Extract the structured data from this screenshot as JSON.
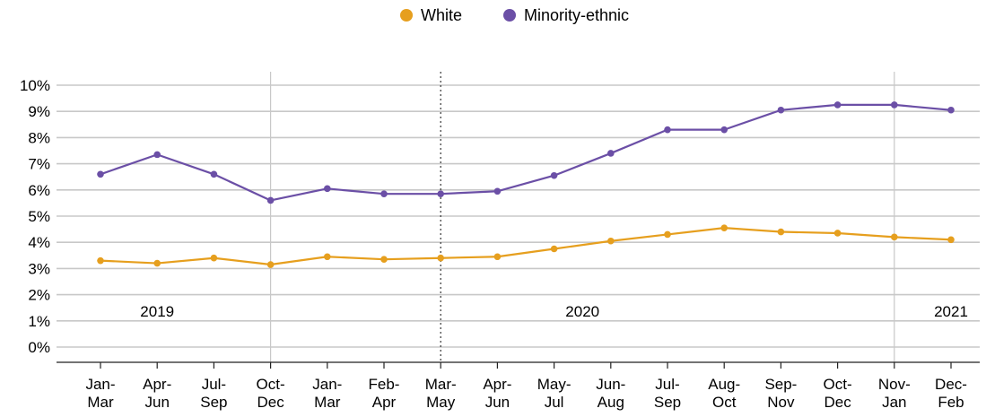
{
  "chart_data": {
    "type": "line",
    "title": "",
    "xlabel": "",
    "ylabel": "",
    "ylim": [
      0,
      10
    ],
    "yticks": [
      "0%",
      "1%",
      "2%",
      "3%",
      "4%",
      "5%",
      "6%",
      "7%",
      "8%",
      "9%",
      "10%"
    ],
    "grid": true,
    "legend_position": "top-center",
    "categories": [
      [
        "Jan-",
        "Mar"
      ],
      [
        "Apr-",
        "Jun"
      ],
      [
        "Jul-",
        "Sep"
      ],
      [
        "Oct-",
        "Dec"
      ],
      [
        "Jan-",
        "Mar"
      ],
      [
        "Feb-",
        "Apr"
      ],
      [
        "Mar-",
        "May"
      ],
      [
        "Apr-",
        "Jun"
      ],
      [
        "May-",
        "Jul"
      ],
      [
        "Jun-",
        "Aug"
      ],
      [
        "Jul-",
        "Sep"
      ],
      [
        "Aug-",
        "Oct"
      ],
      [
        "Sep-",
        "Nov"
      ],
      [
        "Oct-",
        "Dec"
      ],
      [
        "Nov-",
        "Jan"
      ],
      [
        "Dec-",
        "Feb"
      ]
    ],
    "year_labels": [
      {
        "text": "2019",
        "at": 1
      },
      {
        "text": "2020",
        "at": 8.5
      },
      {
        "text": "2021",
        "at": 15
      }
    ],
    "year_dividers": [
      3,
      14
    ],
    "event_marker": 6,
    "series": [
      {
        "name": "White",
        "color": "#E69F1E",
        "values": [
          3.3,
          3.2,
          3.4,
          3.15,
          3.45,
          3.35,
          3.4,
          3.45,
          3.75,
          4.05,
          4.3,
          4.55,
          4.4,
          4.35,
          4.2,
          4.1
        ]
      },
      {
        "name": "Minority-ethnic",
        "color": "#6B4FA6",
        "values": [
          6.6,
          7.35,
          6.6,
          5.6,
          6.05,
          5.85,
          5.85,
          5.95,
          6.55,
          7.4,
          8.3,
          8.3,
          9.05,
          9.25,
          9.25,
          9.05
        ]
      }
    ]
  }
}
